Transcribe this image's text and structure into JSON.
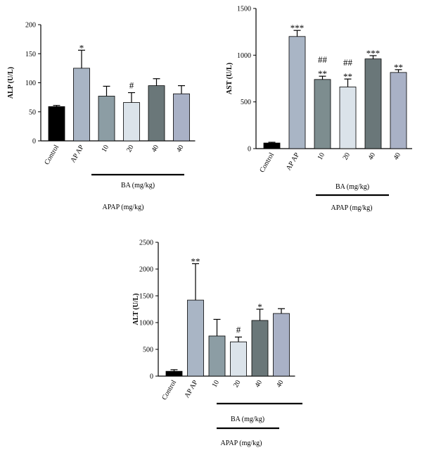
{
  "chart_data": [
    {
      "type": "bar",
      "ylabel": "ALP (U/L)",
      "categories": [
        "Control",
        "AP AP",
        "10",
        "20",
        "40",
        "40"
      ],
      "values": [
        59,
        125,
        77,
        66,
        95,
        81
      ],
      "errors": [
        2,
        31,
        17,
        17,
        12,
        14
      ],
      "annotations": [
        [
          "",
          ""
        ],
        [
          "*",
          ""
        ],
        [
          "",
          ""
        ],
        [
          "#",
          ""
        ],
        [
          "",
          ""
        ],
        [
          "",
          ""
        ]
      ],
      "ylim": [
        0,
        200
      ],
      "yticks": [
        0,
        50,
        100,
        150,
        200
      ],
      "colors": [
        "#000000",
        "#a9b5c5",
        "#8c9da4",
        "#dbe3ea",
        "#6a7779",
        "#a9b1c6"
      ],
      "group_label": "BA (mg/kg)",
      "outer_label": "APAP (mg/kg)"
    },
    {
      "type": "bar",
      "ylabel": "AST (U/L)",
      "categories": [
        "Control",
        "AP AP",
        "10",
        "20",
        "40",
        "40"
      ],
      "values": [
        60,
        1200,
        740,
        660,
        960,
        815
      ],
      "errors": [
        8,
        65,
        35,
        85,
        35,
        30
      ],
      "annotations": [
        [
          "",
          ""
        ],
        [
          "***",
          ""
        ],
        [
          "**",
          "##"
        ],
        [
          "**",
          "##"
        ],
        [
          "***",
          ""
        ],
        [
          "**",
          ""
        ]
      ],
      "ylim": [
        0,
        1500
      ],
      "yticks": [
        0,
        500,
        1000,
        1500
      ],
      "colors": [
        "#000000",
        "#a9b5c5",
        "#7d8d8f",
        "#dbe3ea",
        "#6a7779",
        "#a9b1c6"
      ],
      "group_label": "BA (mg/kg)",
      "outer_label": "APAP (mg/kg)"
    },
    {
      "type": "bar",
      "ylabel": "ALT (U/L)",
      "categories": [
        "Control",
        "AP AP",
        "10",
        "20",
        "40",
        "40"
      ],
      "values": [
        90,
        1420,
        750,
        640,
        1040,
        1170
      ],
      "errors": [
        30,
        680,
        310,
        90,
        210,
        90
      ],
      "annotations": [
        [
          "",
          ""
        ],
        [
          "**",
          ""
        ],
        [
          "",
          ""
        ],
        [
          "#",
          ""
        ],
        [
          "*",
          ""
        ],
        [
          "",
          ""
        ]
      ],
      "ylim": [
        0,
        2500
      ],
      "yticks": [
        0,
        500,
        1000,
        1500,
        2000,
        2500
      ],
      "colors": [
        "#000000",
        "#a9b5c5",
        "#8c9da4",
        "#dbe3ea",
        "#6a7779",
        "#a9b1c6"
      ],
      "group_label": "BA (mg/kg)",
      "outer_label": "APAP (mg/kg)"
    }
  ]
}
